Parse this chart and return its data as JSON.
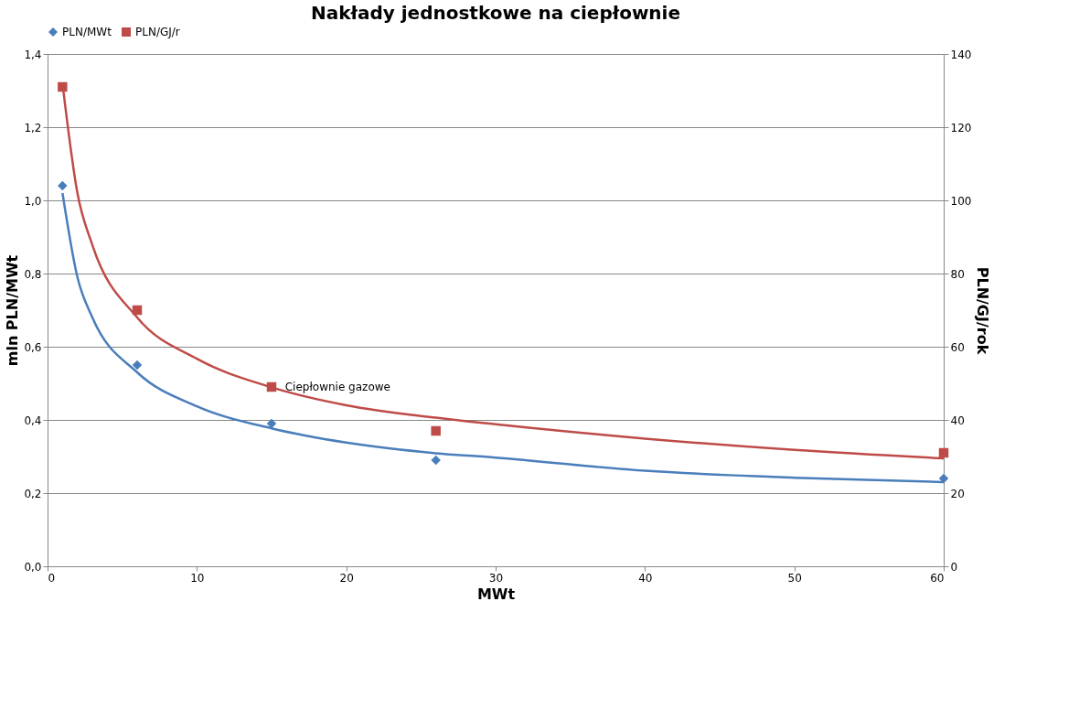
{
  "chart_data": {
    "type": "scatter",
    "title": "Nakłady jednostkowe na ciepłownie",
    "xlabel": "MWt",
    "ylabel": "mln PLN/MWt",
    "y2label": "PLN/GJ/rok",
    "xlim": [
      0,
      60
    ],
    "xticks": [
      0,
      10,
      20,
      30,
      40,
      50,
      60
    ],
    "ylim": [
      0,
      1.4
    ],
    "yticks": [
      {
        "value": 0,
        "label": "0,0"
      },
      {
        "value": 0.2,
        "label": "0,2"
      },
      {
        "value": 0.4,
        "label": "0,4"
      },
      {
        "value": 0.6,
        "label": "0,6"
      },
      {
        "value": 0.8,
        "label": "0,8"
      },
      {
        "value": 1.0,
        "label": "1,0"
      },
      {
        "value": 1.2,
        "label": "1,2"
      },
      {
        "value": 1.4,
        "label": "1,4"
      }
    ],
    "y2lim": [
      0,
      140
    ],
    "y2ticks": [
      0,
      20,
      40,
      60,
      80,
      100,
      120,
      140
    ],
    "grid": "y",
    "legend": "top",
    "annotations": [
      "Ciepłownie gazowe"
    ],
    "series": [
      {
        "name": "PLN/MWt",
        "marker": "diamond",
        "color": "#4a7ebb",
        "x": [
          1,
          6,
          15,
          26,
          60
        ],
        "values": [
          1.04,
          0.55,
          0.39,
          0.29,
          0.24
        ]
      },
      {
        "name": "PLN/GJ/r",
        "marker": "square",
        "color": "#be4b48",
        "axis": "y2",
        "x": [
          1,
          6,
          15,
          26,
          60
        ],
        "values": [
          131,
          70,
          49,
          37,
          31
        ]
      },
      {
        "type": "line",
        "color": "#4a7ebb",
        "x": [
          1,
          2,
          3,
          6,
          10,
          15,
          20,
          26,
          30,
          40,
          50,
          60
        ],
        "values": [
          1.02,
          0.79,
          0.68,
          0.53,
          0.437,
          0.377,
          0.338,
          0.309,
          0.297,
          0.261,
          0.242,
          0.23
        ]
      },
      {
        "type": "line",
        "color": "#be4b48",
        "axis": "y2",
        "x": [
          1,
          2,
          3,
          6,
          10,
          15,
          20,
          26,
          30,
          40,
          50,
          60
        ],
        "values": [
          132,
          102,
          87.8,
          68,
          56.7,
          48.9,
          44,
          40.6,
          38.8,
          34.9,
          31.8,
          29.5
        ]
      }
    ]
  }
}
